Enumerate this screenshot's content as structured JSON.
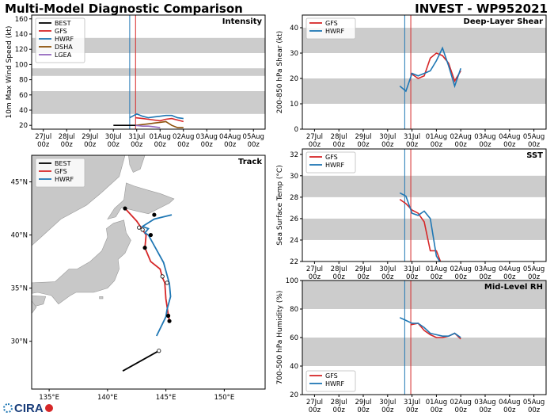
{
  "header": {
    "title": "Multi-Model Diagnostic Comparison",
    "storm": "INVEST - WP952021",
    "logo_text": "CIRA"
  },
  "colors": {
    "BEST": "#000000",
    "GFS": "#d62728",
    "HWRF": "#1f77b4",
    "DSHA": "#8c510a",
    "LGEA": "#9467bd",
    "band": "#cccccc",
    "vline_hwrf": "#1f77b4",
    "vline_gfs": "#d62728",
    "land": "#c8c8c8",
    "sea": "#ffffff"
  },
  "time_axis": {
    "ticks": [
      {
        "t": 0,
        "day": "27Jul",
        "hour": "00z"
      },
      {
        "t": 1,
        "day": "28Jul",
        "hour": "00z"
      },
      {
        "t": 2,
        "day": "29Jul",
        "hour": "00z"
      },
      {
        "t": 3,
        "day": "30Jul",
        "hour": "00z"
      },
      {
        "t": 4,
        "day": "31Jul",
        "hour": "00z"
      },
      {
        "t": 5,
        "day": "01Aug",
        "hour": "00z"
      },
      {
        "t": 6,
        "day": "02Aug",
        "hour": "00z"
      },
      {
        "t": 7,
        "day": "03Aug",
        "hour": "00z"
      },
      {
        "t": 8,
        "day": "04Aug",
        "hour": "00z"
      },
      {
        "t": 9,
        "day": "05Aug",
        "hour": "00z"
      }
    ],
    "range": [
      -0.5,
      9.5
    ],
    "init_lines": [
      {
        "model": "HWRF",
        "t": 3.7
      },
      {
        "model": "GFS",
        "t": 3.95
      }
    ]
  },
  "chart_data": [
    {
      "id": "intensity",
      "type": "line",
      "title": "Intensity",
      "ylabel": "10m Max Wind Speed (kt)",
      "ylim": [
        15,
        165
      ],
      "yticks": [
        20,
        40,
        60,
        80,
        100,
        120,
        140,
        160
      ],
      "bands": [
        [
          35,
          65
        ],
        [
          85,
          95
        ],
        [
          115,
          135
        ]
      ],
      "legend": "top-left",
      "series": [
        {
          "name": "BEST",
          "x": [
            3.0,
            3.25,
            3.5,
            3.75,
            4.0
          ],
          "y": [
            20,
            20,
            20,
            20,
            20
          ]
        },
        {
          "name": "GFS",
          "x": [
            3.95,
            4.25,
            4.5,
            4.75,
            5.0,
            5.25,
            5.5,
            5.75,
            6.0
          ],
          "y": [
            30,
            29,
            28,
            27,
            26,
            28,
            29,
            27,
            25
          ]
        },
        {
          "name": "HWRF",
          "x": [
            3.7,
            4.0,
            4.25,
            4.5,
            4.75,
            5.0,
            5.25,
            5.5,
            5.75,
            6.0
          ],
          "y": [
            30,
            35,
            32,
            30,
            31,
            32,
            33,
            33,
            30,
            29
          ]
        },
        {
          "name": "DSHA",
          "x": [
            3.95,
            4.25,
            4.5,
            4.75,
            5.0,
            5.25,
            5.5,
            5.75,
            6.0
          ],
          "y": [
            20,
            21,
            22,
            23,
            24,
            25,
            20,
            17,
            17
          ]
        },
        {
          "name": "LGEA",
          "x": [
            3.95,
            4.25,
            4.5,
            4.75,
            5.0
          ],
          "y": [
            20,
            19,
            19,
            18,
            17
          ]
        }
      ]
    },
    {
      "id": "shear",
      "type": "line",
      "title": "Deep-Layer Shear",
      "ylabel": "200-850 hPa Shear (kt)",
      "ylim": [
        0,
        45
      ],
      "yticks": [
        0,
        10,
        20,
        30,
        40
      ],
      "bands": [
        [
          10,
          20
        ],
        [
          30,
          40
        ]
      ],
      "legend": "top-left",
      "series": [
        {
          "name": "GFS",
          "x": [
            3.95,
            4.25,
            4.5,
            4.75,
            5.0,
            5.25,
            5.5,
            5.75,
            6.0
          ],
          "y": [
            22,
            20,
            21,
            28,
            30,
            29,
            26,
            19,
            23
          ]
        },
        {
          "name": "HWRF",
          "x": [
            3.5,
            3.75,
            4.0,
            4.25,
            4.5,
            4.75,
            5.0,
            5.25,
            5.5,
            5.75,
            6.0
          ],
          "y": [
            17,
            15,
            22,
            21,
            22,
            23,
            27,
            32,
            25,
            17,
            24
          ]
        }
      ]
    },
    {
      "id": "sst",
      "type": "line",
      "title": "SST",
      "ylabel": "Sea Surface Temp (°C)",
      "ylim": [
        22,
        32.5
      ],
      "yticks": [
        22,
        24,
        26,
        28,
        30,
        32
      ],
      "bands": [
        [
          24,
          26
        ],
        [
          28,
          30
        ]
      ],
      "legend": "top-left",
      "series": [
        {
          "name": "GFS",
          "x": [
            3.5,
            3.75,
            4.0,
            4.25,
            4.5,
            4.75,
            5.0,
            5.25
          ],
          "y": [
            27.8,
            27.4,
            26.8,
            26.5,
            25.7,
            23.0,
            23.0,
            21.5
          ]
        },
        {
          "name": "HWRF",
          "x": [
            3.5,
            3.75,
            4.0,
            4.25,
            4.5,
            4.75,
            5.0,
            5.25
          ],
          "y": [
            28.4,
            28.1,
            26.5,
            26.3,
            26.7,
            26.0,
            22.5,
            21.6
          ]
        }
      ]
    },
    {
      "id": "rh",
      "type": "line",
      "title": "Mid-Level RH",
      "ylabel": "700-500 hPa Humidity (%)",
      "ylim": [
        20,
        100
      ],
      "yticks": [
        20,
        40,
        60,
        80,
        100
      ],
      "bands": [
        [
          40,
          60
        ],
        [
          80,
          100
        ]
      ],
      "legend": "bottom-left",
      "series": [
        {
          "name": "GFS",
          "x": [
            3.95,
            4.25,
            4.5,
            4.75,
            5.0,
            5.25,
            5.5,
            5.75,
            6.0
          ],
          "y": [
            69,
            70,
            65,
            62,
            60,
            60,
            61,
            63,
            59
          ]
        },
        {
          "name": "HWRF",
          "x": [
            3.5,
            3.75,
            4.0,
            4.25,
            4.5,
            4.75,
            5.0,
            5.25,
            5.5,
            5.75,
            6.0
          ],
          "y": [
            74,
            72,
            70,
            70,
            67,
            63,
            62,
            61,
            61,
            63,
            60
          ]
        }
      ]
    },
    {
      "id": "track",
      "type": "scatter",
      "title": "Track",
      "xlim": [
        133.5,
        153.5
      ],
      "ylim": [
        25.5,
        47.5
      ],
      "xticks": [
        {
          "v": 135,
          "label": "135°E"
        },
        {
          "v": 140,
          "label": "140°E"
        },
        {
          "v": 145,
          "label": "145°E"
        },
        {
          "v": 150,
          "label": "150°E"
        }
      ],
      "yticks": [
        {
          "v": 30,
          "label": "30°N"
        },
        {
          "v": 35,
          "label": "35°N"
        },
        {
          "v": 40,
          "label": "40°N"
        },
        {
          "v": 45,
          "label": "45°N"
        }
      ],
      "legend": "top-left",
      "series": [
        {
          "name": "BEST",
          "lon": [
            141.3,
            144.4
          ],
          "lat": [
            27.2,
            29.1
          ]
        },
        {
          "name": "GFS",
          "lon": [
            145.3,
            145.2,
            145.0,
            144.9,
            144.7,
            144.5,
            143.7,
            143.2,
            143.3,
            143.0,
            142.5,
            141.5
          ],
          "lat": [
            31.9,
            32.5,
            34.0,
            35.5,
            36.0,
            36.8,
            37.5,
            38.8,
            40.0,
            40.5,
            41.3,
            42.5
          ]
        },
        {
          "name": "HWRF",
          "lon": [
            144.2,
            145.0,
            145.1,
            145.4,
            145.3,
            144.8,
            144.0,
            143.5,
            143.2,
            143.5,
            143.0,
            144.0,
            145.5
          ],
          "lat": [
            30.5,
            32.3,
            33.0,
            34.2,
            35.4,
            37.4,
            39.0,
            40.0,
            40.2,
            40.6,
            40.8,
            41.5,
            41.9
          ]
        }
      ],
      "markers": [
        {
          "lon": 144.4,
          "lat": 29.1,
          "fill": "white",
          "model": "BEST"
        },
        {
          "lon": 145.3,
          "lat": 31.9,
          "fill": "black",
          "model": "GFS"
        },
        {
          "lon": 145.2,
          "lat": 32.4,
          "fill": "black",
          "model": "HWRF"
        },
        {
          "lon": 145.1,
          "lat": 35.5,
          "fill": "white",
          "model": "HWRF"
        },
        {
          "lon": 144.7,
          "lat": 36.1,
          "fill": "white",
          "model": "GFS"
        },
        {
          "lon": 143.2,
          "lat": 38.8,
          "fill": "black",
          "model": "GFS"
        },
        {
          "lon": 143.7,
          "lat": 40.0,
          "fill": "black",
          "model": "GFS"
        },
        {
          "lon": 143.0,
          "lat": 40.5,
          "fill": "white",
          "model": "HWRF"
        },
        {
          "lon": 142.7,
          "lat": 40.7,
          "fill": "white",
          "model": "GFS"
        },
        {
          "lon": 144.0,
          "lat": 41.9,
          "fill": "black",
          "model": "GFS"
        },
        {
          "lon": 141.5,
          "lat": 42.5,
          "fill": "black",
          "model": "GFS"
        }
      ]
    }
  ]
}
